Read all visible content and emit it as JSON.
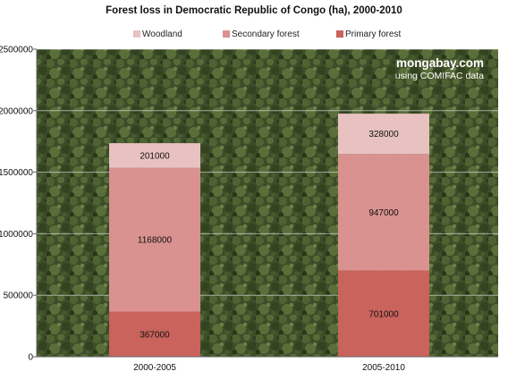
{
  "colors": {
    "woodland": "#e8c2c0",
    "secondary_forest": "#d99290",
    "primary_forest": "#c9635c",
    "background_photo": "forest-canopy-aerial"
  },
  "watermark": {
    "line1": "mongabay.com",
    "line2": "using COMIFAC data"
  },
  "chart_data": {
    "type": "bar",
    "stacked": true,
    "title": "Forest loss in Democratic Republic of Congo (ha), 2000-2010",
    "xlabel": "",
    "ylabel": "",
    "categories": [
      "2000-2005",
      "2005-2010"
    ],
    "series": [
      {
        "name": "Primary forest",
        "values": [
          367000,
          701000
        ]
      },
      {
        "name": "Secondary forest",
        "values": [
          1168000,
          947000
        ]
      },
      {
        "name": "Woodland",
        "values": [
          201000,
          328000
        ]
      }
    ],
    "legend_order": [
      "Woodland",
      "Secondary forest",
      "Primary forest"
    ],
    "ylim": [
      0,
      2500000
    ],
    "yticks": [
      "0",
      "500000",
      "1000000",
      "1500000",
      "2000000",
      "2500000"
    ],
    "grid": true,
    "legend_position": "top"
  }
}
